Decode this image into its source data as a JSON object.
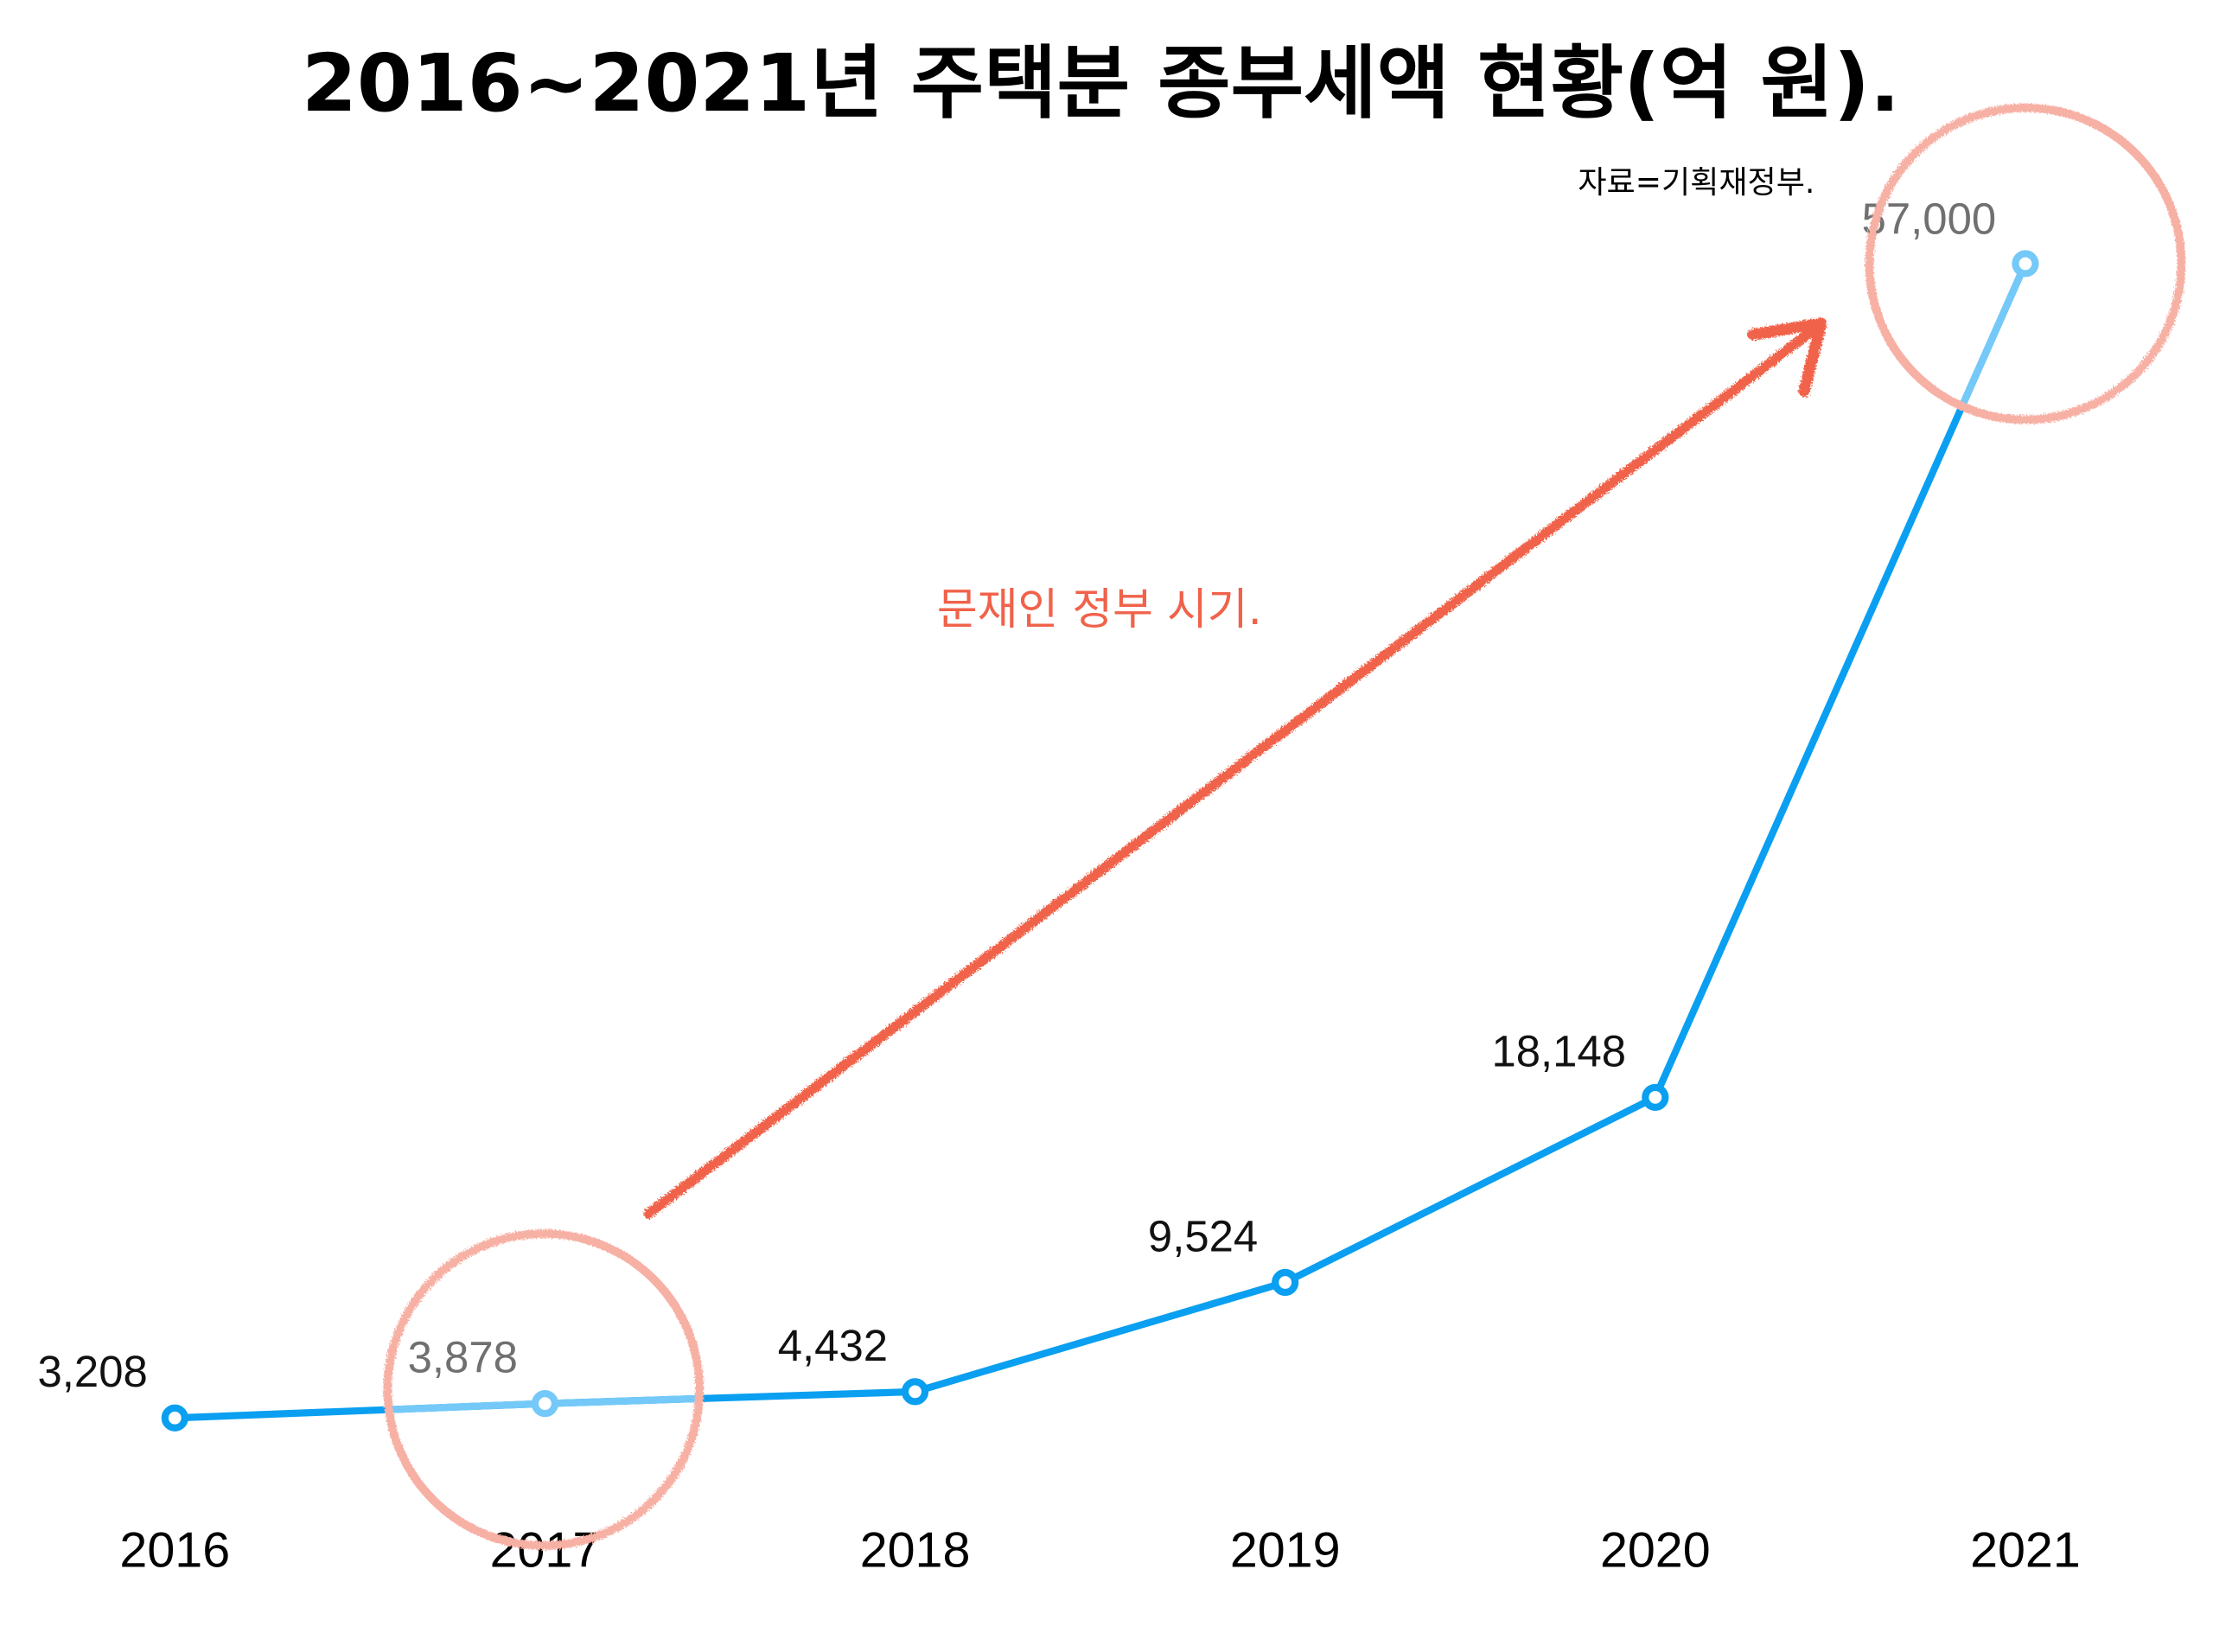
{
  "chart_data": {
    "type": "line",
    "title": "2016~2021년 주택분 종부세액 현황(억 원).",
    "source": "자료=기획재정부.",
    "annotation": "문재인 정부 시기.",
    "xlabel": "",
    "ylabel": "",
    "categories": [
      "2016",
      "2017",
      "2018",
      "2019",
      "2020",
      "2021"
    ],
    "series": [
      {
        "name": "주택분 종부세액",
        "values": [
          3208,
          3878,
          4432,
          9524,
          18148,
          57000
        ],
        "labels": [
          "3,208",
          "3,878",
          "4,432",
          "9,524",
          "18,148",
          "57,000"
        ]
      }
    ],
    "highlighted": [
      "2017",
      "2021"
    ],
    "ylim": [
      0,
      57000
    ],
    "grid": false,
    "colors": {
      "line": "#0a9ff0",
      "line_highlight": "#74c9f8",
      "circle": "#f7b0a4",
      "arrow": "#f0624a"
    }
  }
}
